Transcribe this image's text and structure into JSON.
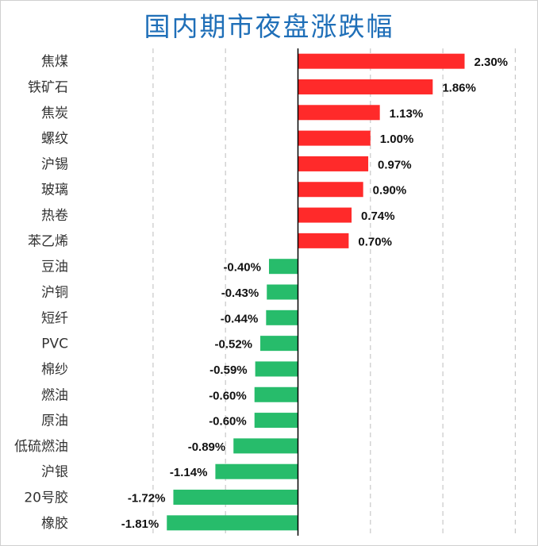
{
  "chart_data": {
    "type": "bar",
    "orientation": "horizontal",
    "title": "国内期市夜盘涨跌幅",
    "categories": [
      "焦煤",
      "铁矿石",
      "焦炭",
      "螺纹",
      "沪锡",
      "玻璃",
      "热卷",
      "苯乙烯",
      "豆油",
      "沪铜",
      "短纤",
      "PVC",
      "棉纱",
      "燃油",
      "原油",
      "低硫燃油",
      "沪银",
      "20号胶",
      "橡胶"
    ],
    "values": [
      2.3,
      1.86,
      1.13,
      1.0,
      0.97,
      0.9,
      0.74,
      0.7,
      -0.4,
      -0.43,
      -0.44,
      -0.52,
      -0.59,
      -0.6,
      -0.6,
      -0.89,
      -1.14,
      -1.72,
      -1.81
    ],
    "value_labels": [
      "2.30%",
      "1.86%",
      "1.13%",
      "1.00%",
      "0.97%",
      "0.90%",
      "0.74%",
      "0.70%",
      "-0.40%",
      "-0.43%",
      "-0.44%",
      "-0.52%",
      "-0.59%",
      "-0.60%",
      "-0.60%",
      "-0.89%",
      "-1.14%",
      "-1.72%",
      "-1.81%"
    ],
    "xlim": [
      -2.0,
      3.0
    ],
    "gridlines": [
      -2.0,
      -1.0,
      0,
      1.0,
      2.0,
      3.0
    ],
    "grid": "vertical dashed",
    "legend": "none",
    "xlabel": "",
    "ylabel": "",
    "colors": {
      "positive": "#ff2a2a",
      "negative": "#27bc6b",
      "title": "#1f6fb8",
      "grid": "#c8c8c8",
      "axis": "#000000"
    }
  }
}
